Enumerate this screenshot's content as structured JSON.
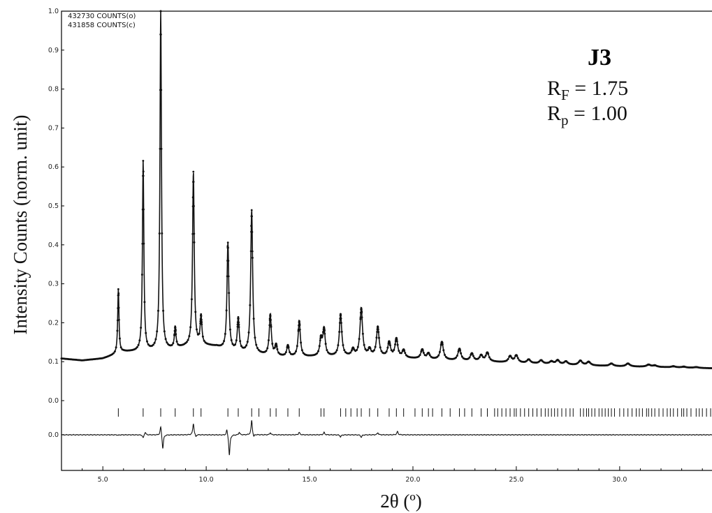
{
  "chart_data": {
    "type": "line",
    "title": "",
    "xlabel": "2θ (º)",
    "ylabel": "Intensity Counts (norm. unit)",
    "xlim": [
      3.0,
      34.5
    ],
    "ylim": [
      0.0,
      1.0
    ],
    "x_ticks": [
      5.0,
      10.0,
      15.0,
      20.0,
      25.0,
      30.0
    ],
    "x_tick_labels": [
      "5.0",
      "10.0",
      "15.0",
      "20.0",
      "25.0",
      "30.0"
    ],
    "y_ticks": [
      0.1,
      0.2,
      0.3,
      0.4,
      0.5,
      0.6,
      0.7,
      0.8,
      0.9,
      1.0
    ],
    "y_tick_labels": [
      "0.1",
      "0.2",
      "0.3",
      "0.4",
      "0.5",
      "0.6",
      "0.7",
      "0.8",
      "0.9",
      "1.0"
    ],
    "offset_axis_labels": [
      "0.0",
      "0.0"
    ],
    "counts": {
      "observed": "432730 COUNTS(o)",
      "calculated": "431858 COUNTS(c)"
    },
    "annotation": {
      "sample": "J3",
      "rf_main": "R",
      "rf_sub": "F",
      "rf_value": " = 1.75",
      "rp_main": "R",
      "rp_sub": "p",
      "rp_value": " = 1.00"
    },
    "background": [
      [
        3.0,
        0.108
      ],
      [
        4.0,
        0.103
      ],
      [
        5.0,
        0.108
      ],
      [
        5.6,
        0.118
      ],
      [
        6.0,
        0.125
      ],
      [
        7.0,
        0.126
      ],
      [
        8.0,
        0.128
      ],
      [
        9.0,
        0.138
      ],
      [
        9.8,
        0.142
      ],
      [
        10.5,
        0.138
      ],
      [
        11.0,
        0.128
      ],
      [
        12.0,
        0.121
      ],
      [
        13.0,
        0.115
      ],
      [
        14.0,
        0.112
      ],
      [
        16.0,
        0.113
      ],
      [
        18.0,
        0.114
      ],
      [
        20.0,
        0.108
      ],
      [
        22.0,
        0.103
      ],
      [
        24.0,
        0.099
      ],
      [
        26.0,
        0.095
      ],
      [
        28.0,
        0.091
      ],
      [
        30.0,
        0.088
      ],
      [
        32.0,
        0.086
      ],
      [
        34.5,
        0.083
      ]
    ],
    "peaks": [
      {
        "x": 5.75,
        "y": 0.285
      },
      {
        "x": 6.95,
        "y": 0.613
      },
      {
        "x": 7.8,
        "y": 1.0
      },
      {
        "x": 8.5,
        "y": 0.185
      },
      {
        "x": 9.38,
        "y": 0.585
      },
      {
        "x": 9.75,
        "y": 0.213
      },
      {
        "x": 11.05,
        "y": 0.403
      },
      {
        "x": 11.55,
        "y": 0.208
      },
      {
        "x": 12.2,
        "y": 0.487
      },
      {
        "x": 13.1,
        "y": 0.218
      },
      {
        "x": 13.38,
        "y": 0.14
      },
      {
        "x": 13.95,
        "y": 0.14
      },
      {
        "x": 14.5,
        "y": 0.203
      },
      {
        "x": 15.55,
        "y": 0.155
      },
      {
        "x": 15.7,
        "y": 0.18
      },
      {
        "x": 16.5,
        "y": 0.22
      },
      {
        "x": 17.1,
        "y": 0.13
      },
      {
        "x": 17.5,
        "y": 0.235
      },
      {
        "x": 17.9,
        "y": 0.13
      },
      {
        "x": 18.3,
        "y": 0.187
      },
      {
        "x": 18.85,
        "y": 0.148
      },
      {
        "x": 19.2,
        "y": 0.157
      },
      {
        "x": 19.55,
        "y": 0.128
      },
      {
        "x": 20.45,
        "y": 0.13
      },
      {
        "x": 20.75,
        "y": 0.12
      },
      {
        "x": 21.4,
        "y": 0.15
      },
      {
        "x": 22.25,
        "y": 0.132
      },
      {
        "x": 22.85,
        "y": 0.12
      },
      {
        "x": 23.3,
        "y": 0.115
      },
      {
        "x": 23.6,
        "y": 0.122
      },
      {
        "x": 24.7,
        "y": 0.113
      },
      {
        "x": 25.0,
        "y": 0.115
      },
      {
        "x": 25.6,
        "y": 0.105
      },
      {
        "x": 26.2,
        "y": 0.103
      },
      {
        "x": 26.7,
        "y": 0.1
      },
      {
        "x": 27.0,
        "y": 0.103
      },
      {
        "x": 27.4,
        "y": 0.1
      },
      {
        "x": 28.1,
        "y": 0.102
      },
      {
        "x": 28.5,
        "y": 0.099
      },
      {
        "x": 29.6,
        "y": 0.095
      },
      {
        "x": 30.4,
        "y": 0.095
      },
      {
        "x": 31.4,
        "y": 0.092
      },
      {
        "x": 31.7,
        "y": 0.09
      },
      {
        "x": 32.6,
        "y": 0.088
      },
      {
        "x": 33.1,
        "y": 0.087
      },
      {
        "x": 33.7,
        "y": 0.086
      }
    ],
    "difference_features": [
      {
        "x": 5.75,
        "d": -0.02
      },
      {
        "x": 6.95,
        "d": -0.16
      },
      {
        "x": 7.05,
        "d": 0.14
      },
      {
        "x": 7.8,
        "d": 0.45
      },
      {
        "x": 7.9,
        "d": -0.7
      },
      {
        "x": 9.38,
        "d": 0.55
      },
      {
        "x": 9.5,
        "d": -0.12
      },
      {
        "x": 11.0,
        "d": 0.3
      },
      {
        "x": 11.12,
        "d": -1.0
      },
      {
        "x": 11.6,
        "d": 0.12
      },
      {
        "x": 12.2,
        "d": 0.7
      },
      {
        "x": 12.3,
        "d": -0.14
      },
      {
        "x": 13.1,
        "d": 0.1
      },
      {
        "x": 14.5,
        "d": 0.12
      },
      {
        "x": 15.7,
        "d": 0.12
      },
      {
        "x": 16.5,
        "d": -0.1
      },
      {
        "x": 17.5,
        "d": -0.12
      },
      {
        "x": 18.3,
        "d": 0.1
      },
      {
        "x": 19.25,
        "d": 0.16
      }
    ],
    "reflection_positions": [
      5.75,
      6.95,
      7.8,
      8.5,
      9.38,
      9.75,
      11.05,
      11.55,
      12.2,
      12.55,
      13.1,
      13.38,
      13.95,
      14.5,
      15.55,
      15.7,
      16.5,
      16.75,
      17.0,
      17.3,
      17.5,
      17.9,
      18.3,
      18.85,
      19.2,
      19.55,
      20.1,
      20.45,
      20.75,
      20.95,
      21.4,
      21.8,
      22.25,
      22.5,
      22.85,
      23.3,
      23.6,
      23.95,
      24.1,
      24.3,
      24.5,
      24.7,
      24.9,
      25.0,
      25.2,
      25.4,
      25.6,
      25.8,
      26.0,
      26.2,
      26.4,
      26.55,
      26.7,
      26.85,
      27.0,
      27.2,
      27.4,
      27.6,
      27.75,
      28.1,
      28.25,
      28.4,
      28.5,
      28.65,
      28.8,
      29.0,
      29.15,
      29.3,
      29.45,
      29.6,
      29.75,
      30.0,
      30.2,
      30.4,
      30.6,
      30.8,
      30.95,
      31.1,
      31.3,
      31.4,
      31.55,
      31.7,
      31.9,
      32.1,
      32.3,
      32.45,
      32.6,
      32.8,
      33.0,
      33.1,
      33.25,
      33.45,
      33.7,
      33.85,
      34.0,
      34.2,
      34.4
    ]
  }
}
